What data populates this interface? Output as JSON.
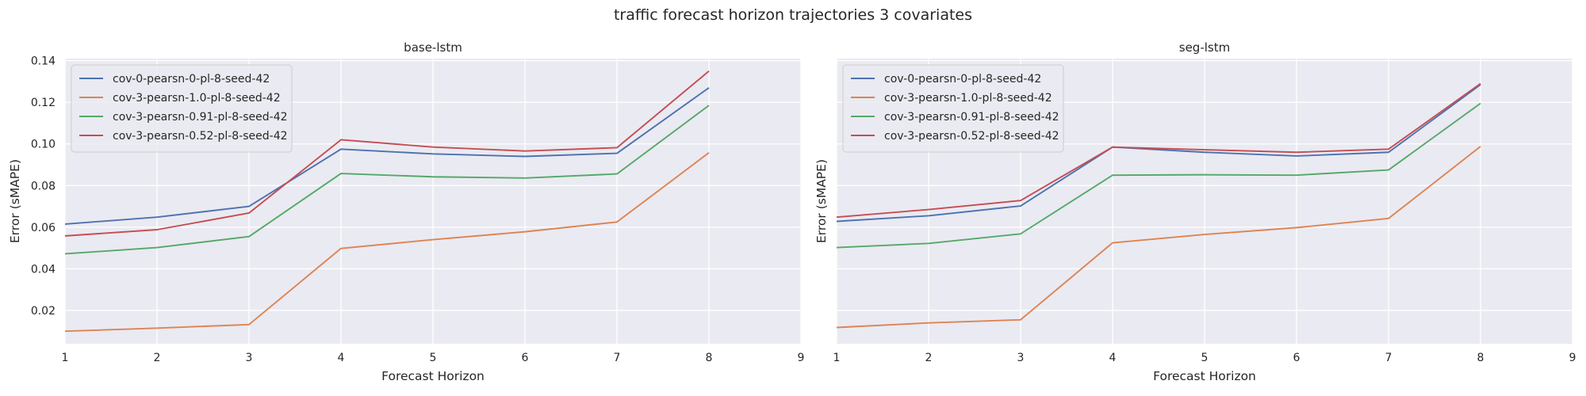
{
  "figure": {
    "suptitle": "traffic forecast horizon trajectories 3 covariates"
  },
  "colors": {
    "cov-0-pearsn-0-pl-8-seed-42": "#4c72b0",
    "cov-3-pearsn-1.0-pl-8-seed-42": "#dd8452",
    "cov-3-pearsn-0.91-pl-8-seed-42": "#55a868",
    "cov-3-pearsn-0.52-pl-8-seed-42": "#c44e52"
  },
  "chart_data": [
    {
      "type": "line",
      "title": "base-lstm",
      "xlabel": "Forecast Horizon",
      "ylabel": "Error (sMAPE)",
      "xlim": [
        1,
        9
      ],
      "ylim": [
        0.004,
        0.141
      ],
      "xticks": [
        1,
        2,
        3,
        4,
        5,
        6,
        7,
        8,
        9
      ],
      "yticks": [
        0.02,
        0.04,
        0.06,
        0.08,
        0.1,
        0.12,
        0.14
      ],
      "ytick_labels": [
        "0.02",
        "0.04",
        "0.06",
        "0.08",
        "0.10",
        "0.12",
        "0.14"
      ],
      "grid": true,
      "legend": "upper-left",
      "x": [
        1,
        2,
        3,
        4,
        5,
        6,
        7,
        8
      ],
      "series": [
        {
          "name": "cov-0-pearsn-0-pl-8-seed-42",
          "values": [
            0.0615,
            0.0648,
            0.07,
            0.0975,
            0.0952,
            0.094,
            0.0955,
            0.127
          ]
        },
        {
          "name": "cov-3-pearsn-1.0-pl-8-seed-42",
          "values": [
            0.01,
            0.0115,
            0.0132,
            0.0498,
            0.054,
            0.0578,
            0.0625,
            0.0958
          ]
        },
        {
          "name": "cov-3-pearsn-0.91-pl-8-seed-42",
          "values": [
            0.0472,
            0.0502,
            0.0555,
            0.0858,
            0.0842,
            0.0836,
            0.0856,
            0.1185
          ]
        },
        {
          "name": "cov-3-pearsn-0.52-pl-8-seed-42",
          "values": [
            0.0558,
            0.0588,
            0.0668,
            0.102,
            0.0985,
            0.0966,
            0.0982,
            0.135
          ]
        }
      ]
    },
    {
      "type": "line",
      "title": "seg-lstm",
      "xlabel": "Forecast Horizon",
      "ylabel": "Error (sMAPE)",
      "xlim": [
        1,
        9
      ],
      "ylim": [
        0.004,
        0.141
      ],
      "xticks": [
        1,
        2,
        3,
        4,
        5,
        6,
        7,
        8,
        9
      ],
      "yticks": [],
      "ytick_labels": [],
      "grid": true,
      "legend": "upper-left",
      "x": [
        1,
        2,
        3,
        4,
        5,
        6,
        7,
        8
      ],
      "series": [
        {
          "name": "cov-0-pearsn-0-pl-8-seed-42",
          "values": [
            0.0628,
            0.0655,
            0.0702,
            0.0985,
            0.096,
            0.0942,
            0.096,
            0.1285
          ]
        },
        {
          "name": "cov-3-pearsn-1.0-pl-8-seed-42",
          "values": [
            0.0118,
            0.014,
            0.0155,
            0.0525,
            0.0565,
            0.0598,
            0.0642,
            0.0988
          ]
        },
        {
          "name": "cov-3-pearsn-0.91-pl-8-seed-42",
          "values": [
            0.0502,
            0.0522,
            0.0568,
            0.085,
            0.0852,
            0.085,
            0.0875,
            0.1195
          ]
        },
        {
          "name": "cov-3-pearsn-0.52-pl-8-seed-42",
          "values": [
            0.0648,
            0.0685,
            0.0728,
            0.0985,
            0.0972,
            0.096,
            0.0975,
            0.129
          ]
        }
      ]
    }
  ]
}
